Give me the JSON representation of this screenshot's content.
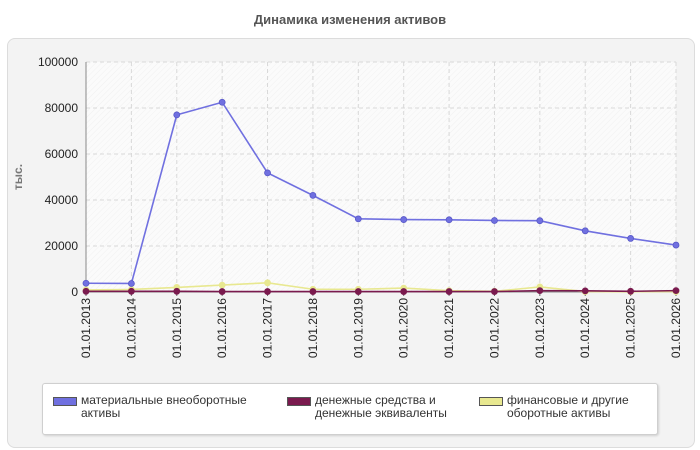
{
  "chart_data": {
    "type": "line",
    "title": "Динамика изменения активов",
    "ylabel": "тыс.",
    "xlabel": "",
    "categories": [
      "01.01.2013",
      "01.01.2014",
      "01.01.2015",
      "01.01.2016",
      "01.01.2017",
      "01.01.2018",
      "01.01.2019",
      "01.01.2020",
      "01.01.2021",
      "01.01.2022",
      "01.01.2023",
      "01.01.2024",
      "01.01.2025",
      "01.01.2026"
    ],
    "yticks": [
      "0",
      "20000",
      "40000",
      "60000",
      "80000",
      "100000"
    ],
    "ylim": [
      0,
      100000
    ],
    "grid": true,
    "legend_position": "bottom",
    "series": [
      {
        "name": "материальные внеоборотные\nактивы",
        "color": "#7070e0",
        "values": [
          3800,
          3700,
          77000,
          82500,
          51800,
          42000,
          31800,
          31500,
          31400,
          31100,
          31000,
          26600,
          23300,
          20400
        ]
      },
      {
        "name": "денежные средства и\nденежные эквиваленты",
        "color": "#7a1a4e",
        "values": [
          300,
          300,
          300,
          200,
          200,
          200,
          200,
          200,
          200,
          200,
          600,
          500,
          300,
          600
        ]
      },
      {
        "name": "финансовые и другие\nоборотные активы",
        "color": "#e8e890",
        "values": [
          900,
          1100,
          2000,
          3000,
          4000,
          1200,
          1200,
          1700,
          600,
          300,
          2200,
          200,
          100,
          200
        ]
      }
    ]
  }
}
